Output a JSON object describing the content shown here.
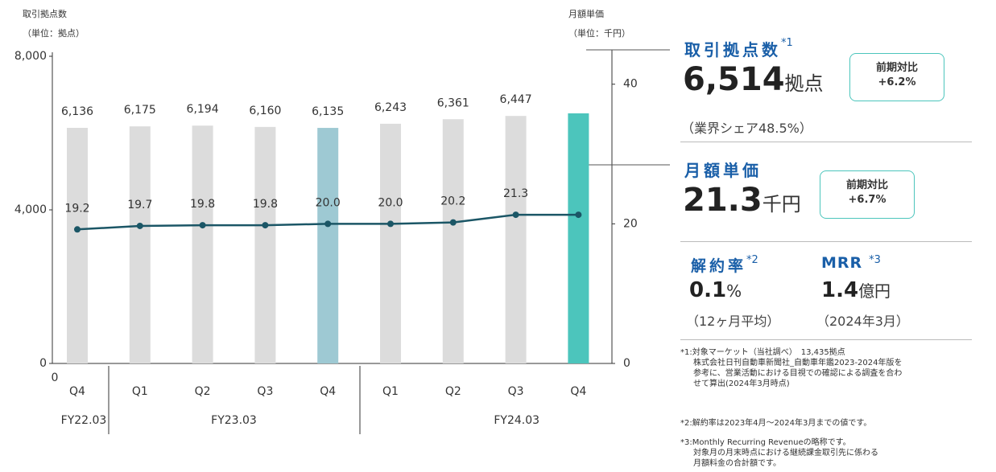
{
  "chart_data": {
    "type": "bar_line",
    "y_label": [
      "取引拠点数",
      "（単位：拠点）"
    ],
    "y2_label": [
      "月額単価",
      "（単位：千円）"
    ],
    "origin_label": "0",
    "groups": [
      {
        "name": "FY22.03",
        "categories": [
          "Q4"
        ]
      },
      {
        "name": "FY23.03",
        "categories": [
          "Q1",
          "Q2",
          "Q3",
          "Q4"
        ]
      },
      {
        "name": "FY24.03",
        "categories": [
          "Q1",
          "Q2",
          "Q3",
          "Q4"
        ]
      }
    ],
    "series": [
      {
        "type": "bar",
        "values": [
          6136,
          6175,
          6194,
          6160,
          6135,
          6243,
          6361,
          6447,
          6514
        ],
        "value_labels": [
          "6,136",
          "6,175",
          "6,194",
          "6,160",
          "6,135",
          "6,243",
          "6,361",
          "6,447",
          null
        ],
        "colors": [
          "#dcdcdc",
          "#dcdcdc",
          "#dcdcdc",
          "#dcdcdc",
          "#9ec9d3",
          "#dcdcdc",
          "#dcdcdc",
          "#dcdcdc",
          "#4cc5bc"
        ]
      },
      {
        "type": "line",
        "axis": "y2",
        "color": "#1b5666",
        "values": [
          19.2,
          19.7,
          19.8,
          19.8,
          20.0,
          20.0,
          20.2,
          21.3,
          21.3
        ],
        "value_labels": [
          "19.2",
          "19.7",
          "19.8",
          "19.8",
          "20.0",
          "20.0",
          "20.2",
          "21.3",
          null
        ]
      }
    ],
    "ylim": [
      0,
      8000
    ],
    "yticks": [
      0,
      {
        "value": 4000,
        "label": "4,000"
      },
      {
        "value": 8000,
        "label": "8,000"
      }
    ],
    "y2lim": [
      0,
      44
    ],
    "y2ticks": [
      0,
      20,
      40
    ]
  },
  "kpi": {
    "sites": {
      "title": "取引拠点数",
      "note": "*1",
      "value": "6,514",
      "unit": "拠点",
      "badge": [
        "前期対比",
        "+6.2%"
      ],
      "sub": "（業界シェア48.5%）"
    },
    "price": {
      "title": "月額単価",
      "value": "21.3",
      "unit": "千円",
      "badge": [
        "前期対比",
        "+6.7%"
      ]
    },
    "churn": {
      "title": "解約率",
      "note": "*2",
      "value": "0.1",
      "unit": "%",
      "sub": "（12ヶ月平均）"
    },
    "mrr": {
      "title": "MRR",
      "note": "*3",
      "value": "1.4",
      "unit": "億円",
      "sub": "（2024年3月）"
    }
  },
  "footnotes": [
    [
      "*1:対象マーケット（当社調べ）　13,435拠点",
      "株式会社日刊自動車新聞社_自動車年鑑2023-2024年版を",
      "参考に、営業活動における目視での確認による調査を合わ",
      "せて算出(2024年3月時点)"
    ],
    [
      "*2:解約率は2023年4月～2024年3月までの値です。"
    ],
    [
      "*3:Monthly Recurring Revenueの略称です。",
      "対象月の月末時点における継続課金取引先に係わる",
      "月額料金の合計額です。"
    ]
  ]
}
